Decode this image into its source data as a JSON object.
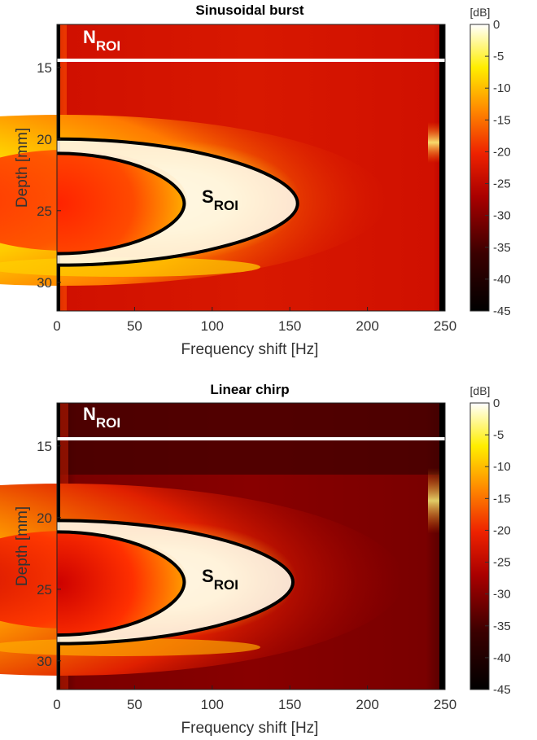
{
  "colorbar": {
    "unit": "[dB]",
    "ticks": [
      "0",
      "-5",
      "-10",
      "-15",
      "-20",
      "-25",
      "-30",
      "-35",
      "-40",
      "-45"
    ]
  },
  "chart_data": [
    {
      "type": "heatmap",
      "title": "Sinusoidal burst",
      "xlabel": "Frequency shift [Hz]",
      "ylabel": "Depth [mm]",
      "xlim": [
        0,
        250
      ],
      "ylim": [
        12,
        32
      ],
      "y_reversed": true,
      "xticks": [
        0,
        50,
        100,
        150,
        200,
        250
      ],
      "yticks": [
        15,
        20,
        25,
        30
      ],
      "colormap": "hot",
      "clim": [
        -45,
        0
      ],
      "background_level_db": -30,
      "noise_roi": {
        "label": "N",
        "subscript": "ROI",
        "boundary_depth": 14.5
      },
      "signal_roi": {
        "label": "S",
        "subscript": "ROI",
        "outer": {
          "apex_hz": 155,
          "apex_depth": 24.5,
          "top_depth": 20.0,
          "bottom_depth": 28.8
        },
        "inner": {
          "apex_hz": 82,
          "apex_depth": 24.5,
          "top_depth": 21.0,
          "bottom_depth": 28.0
        }
      }
    },
    {
      "type": "heatmap",
      "title": "Linear chirp",
      "xlabel": "Frequency shift [Hz]",
      "ylabel": "Depth [mm]",
      "xlim": [
        0,
        250
      ],
      "ylim": [
        12,
        32
      ],
      "y_reversed": true,
      "xticks": [
        0,
        50,
        100,
        150,
        200,
        250
      ],
      "yticks": [
        15,
        20,
        25,
        30
      ],
      "colormap": "hot",
      "clim": [
        -45,
        0
      ],
      "background_level_db": -38,
      "noise_roi": {
        "label": "N",
        "subscript": "ROI",
        "boundary_depth": 14.5
      },
      "signal_roi": {
        "label": "S",
        "subscript": "ROI",
        "outer": {
          "apex_hz": 152,
          "apex_depth": 24.5,
          "top_depth": 20.2,
          "bottom_depth": 28.8
        },
        "inner": {
          "apex_hz": 82,
          "apex_depth": 24.5,
          "top_depth": 21.0,
          "bottom_depth": 28.2
        }
      }
    }
  ]
}
